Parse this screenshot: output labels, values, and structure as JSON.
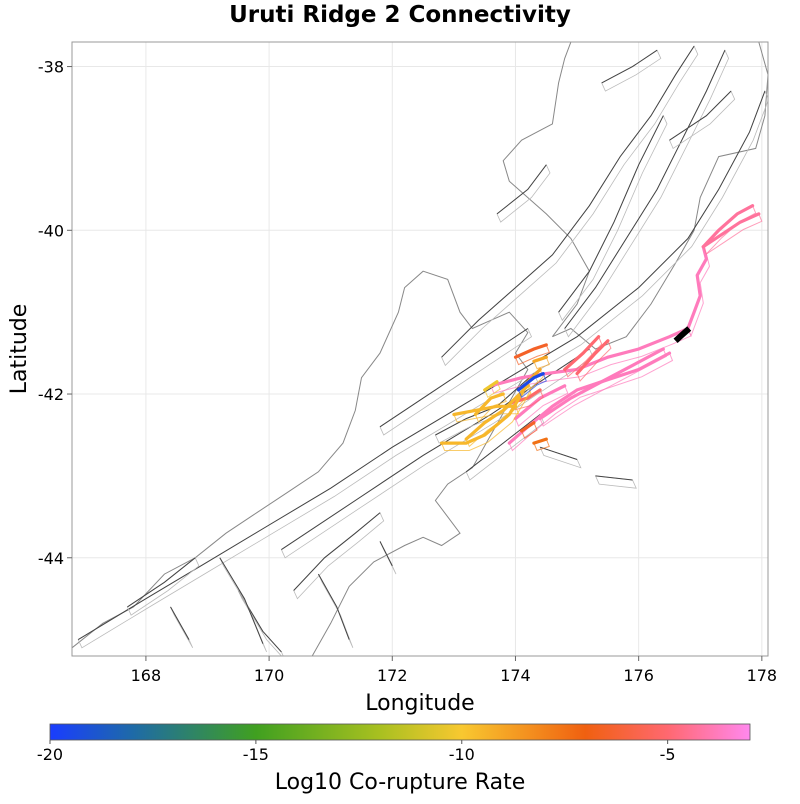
{
  "title": "Uruti Ridge 2 Connectivity",
  "map": {
    "xlabel": "Longitude",
    "ylabel": "Latitude",
    "xlim": [
      166.8,
      178.1
    ],
    "ylim": [
      -45.2,
      -37.7
    ],
    "xticks": [
      168,
      170,
      172,
      174,
      176,
      178
    ],
    "yticks": [
      -38,
      -40,
      -42,
      -44
    ],
    "frame_color": "#999999",
    "grid_color": "#e8e8e8",
    "coast_color": "#888888",
    "fault_color": "#444444",
    "dip_outline_color": "#bbbbbb",
    "coastline": [
      [
        [
          166.8,
          -45.1
        ],
        [
          167.3,
          -44.8
        ],
        [
          167.8,
          -44.6
        ],
        [
          168.3,
          -44.2
        ],
        [
          168.8,
          -44.0
        ],
        [
          169.3,
          -43.7
        ],
        [
          169.8,
          -43.45
        ],
        [
          170.3,
          -43.2
        ],
        [
          170.8,
          -42.95
        ],
        [
          171.2,
          -42.6
        ],
        [
          171.4,
          -42.2
        ],
        [
          171.5,
          -41.8
        ],
        [
          171.8,
          -41.5
        ],
        [
          172.1,
          -41.0
        ],
        [
          172.2,
          -40.7
        ],
        [
          172.5,
          -40.5
        ],
        [
          172.9,
          -40.6
        ],
        [
          173.1,
          -41.0
        ],
        [
          173.3,
          -41.2
        ],
        [
          173.6,
          -41.1
        ],
        [
          173.9,
          -41.0
        ],
        [
          174.2,
          -41.25
        ],
        [
          174.0,
          -41.5
        ],
        [
          174.2,
          -41.7
        ],
        [
          173.9,
          -42.1
        ],
        [
          173.6,
          -42.5
        ],
        [
          173.3,
          -42.9
        ],
        [
          172.9,
          -43.1
        ],
        [
          172.7,
          -43.3
        ],
        [
          172.9,
          -43.5
        ],
        [
          173.1,
          -43.7
        ],
        [
          172.8,
          -43.85
        ],
        [
          172.5,
          -43.75
        ],
        [
          172.2,
          -43.85
        ],
        [
          171.7,
          -44.05
        ],
        [
          171.3,
          -44.35
        ],
        [
          171.0,
          -44.8
        ],
        [
          170.7,
          -45.2
        ]
      ],
      [
        [
          174.6,
          -41.3
        ],
        [
          174.9,
          -41.2
        ],
        [
          175.3,
          -41.45
        ],
        [
          175.8,
          -41.3
        ],
        [
          176.2,
          -40.9
        ],
        [
          176.6,
          -40.4
        ],
        [
          176.9,
          -40.0
        ],
        [
          177.0,
          -39.6
        ],
        [
          177.3,
          -39.1
        ],
        [
          177.9,
          -39.0
        ],
        [
          178.05,
          -38.6
        ],
        [
          178.1,
          -38.1
        ],
        [
          177.95,
          -37.7
        ]
      ],
      [
        [
          174.6,
          -41.3
        ],
        [
          175.0,
          -40.9
        ],
        [
          175.2,
          -40.5
        ],
        [
          174.9,
          -40.1
        ],
        [
          174.5,
          -39.8
        ],
        [
          173.9,
          -39.4
        ],
        [
          173.8,
          -39.15
        ],
        [
          174.1,
          -38.9
        ],
        [
          174.6,
          -38.7
        ],
        [
          174.7,
          -38.2
        ],
        [
          174.8,
          -37.9
        ],
        [
          174.9,
          -37.7
        ]
      ]
    ],
    "background_faults": [
      [
        [
          166.9,
          -45.0
        ],
        [
          168.0,
          -44.5
        ],
        [
          169.0,
          -44.05
        ],
        [
          170.0,
          -43.6
        ],
        [
          171.0,
          -43.15
        ],
        [
          172.0,
          -42.65
        ],
        [
          173.0,
          -42.2
        ],
        [
          174.0,
          -41.75
        ],
        [
          175.0,
          -41.3
        ],
        [
          176.0,
          -40.7
        ],
        [
          176.8,
          -40.1
        ],
        [
          177.3,
          -39.5
        ],
        [
          177.8,
          -38.8
        ],
        [
          178.05,
          -38.3
        ]
      ],
      [
        [
          170.2,
          -43.9
        ],
        [
          171.4,
          -43.3
        ],
        [
          172.5,
          -42.75
        ],
        [
          173.6,
          -42.25
        ],
        [
          174.4,
          -41.85
        ],
        [
          175.2,
          -41.45
        ]
      ],
      [
        [
          171.8,
          -42.4
        ],
        [
          172.7,
          -41.95
        ],
        [
          173.6,
          -41.5
        ],
        [
          174.2,
          -41.2
        ]
      ],
      [
        [
          172.8,
          -41.55
        ],
        [
          173.4,
          -41.1
        ],
        [
          174.0,
          -40.7
        ],
        [
          174.6,
          -40.3
        ],
        [
          175.2,
          -39.7
        ],
        [
          175.7,
          -39.1
        ],
        [
          176.2,
          -38.6
        ],
        [
          176.6,
          -38.1
        ],
        [
          176.9,
          -37.75
        ]
      ],
      [
        [
          174.8,
          -41.2
        ],
        [
          175.3,
          -40.7
        ],
        [
          175.8,
          -40.1
        ],
        [
          176.3,
          -39.5
        ],
        [
          176.7,
          -38.9
        ],
        [
          177.1,
          -38.3
        ],
        [
          177.4,
          -37.8
        ]
      ],
      [
        [
          172.7,
          -42.5
        ],
        [
          173.2,
          -42.3
        ],
        [
          173.7,
          -42.15
        ],
        [
          174.3,
          -41.75
        ]
      ],
      [
        [
          173.2,
          -42.95
        ],
        [
          173.8,
          -42.6
        ],
        [
          174.4,
          -42.25
        ]
      ],
      [
        [
          170.4,
          -44.4
        ],
        [
          170.9,
          -44.0
        ],
        [
          171.4,
          -43.7
        ],
        [
          171.8,
          -43.45
        ]
      ],
      [
        [
          167.7,
          -44.6
        ],
        [
          168.3,
          -44.3
        ],
        [
          168.8,
          -44.0
        ]
      ],
      [
        [
          169.5,
          -44.4
        ],
        [
          169.9,
          -44.9
        ],
        [
          170.2,
          -45.15
        ]
      ],
      [
        [
          169.2,
          -44.0
        ],
        [
          169.6,
          -44.5
        ],
        [
          169.9,
          -45.05
        ]
      ],
      [
        [
          168.4,
          -44.6
        ],
        [
          168.7,
          -45.0
        ]
      ],
      [
        [
          170.8,
          -44.2
        ],
        [
          171.1,
          -44.6
        ],
        [
          171.3,
          -45.0
        ]
      ],
      [
        [
          171.8,
          -43.8
        ],
        [
          172.0,
          -44.1
        ]
      ],
      [
        [
          174.7,
          -41.0
        ],
        [
          175.2,
          -40.5
        ],
        [
          175.6,
          -39.9
        ],
        [
          176.0,
          -39.2
        ],
        [
          176.4,
          -38.6
        ]
      ],
      [
        [
          173.7,
          -39.8
        ],
        [
          174.2,
          -39.5
        ],
        [
          174.5,
          -39.2
        ]
      ],
      [
        [
          175.4,
          -38.2
        ],
        [
          175.9,
          -38.0
        ],
        [
          176.3,
          -37.8
        ]
      ],
      [
        [
          176.5,
          -38.9
        ],
        [
          177.1,
          -38.6
        ],
        [
          177.5,
          -38.3
        ]
      ],
      [
        [
          174.4,
          -42.65
        ],
        [
          175.0,
          -42.8
        ]
      ],
      [
        [
          175.3,
          -43.0
        ],
        [
          175.9,
          -43.05
        ]
      ]
    ],
    "colorbar": {
      "label": "Log10 Co-rupture Rate",
      "min": -20,
      "max": -3,
      "ticks": [
        -20,
        -15,
        -10,
        -5
      ],
      "stops": [
        {
          "value": -20,
          "color": "#1a3dff"
        },
        {
          "value": -18,
          "color": "#1e6aa8"
        },
        {
          "value": -15,
          "color": "#40a020"
        },
        {
          "value": -12,
          "color": "#a8c020"
        },
        {
          "value": -10,
          "color": "#f8c830"
        },
        {
          "value": -7,
          "color": "#f06010"
        },
        {
          "value": -5,
          "color": "#ff6870"
        },
        {
          "value": -3,
          "color": "#ff88ee"
        }
      ]
    },
    "corupture_segments": [
      {
        "rate": -3.8,
        "points": [
          [
            173.6,
            -41.9
          ],
          [
            174.1,
            -41.8
          ],
          [
            174.5,
            -41.75
          ],
          [
            175.0,
            -41.7
          ],
          [
            175.5,
            -41.55
          ],
          [
            176.0,
            -41.45
          ],
          [
            176.5,
            -41.3
          ],
          [
            176.8,
            -41.2
          ]
        ]
      },
      {
        "rate": -3.8,
        "points": [
          [
            174.4,
            -42.3
          ],
          [
            174.9,
            -42.05
          ],
          [
            175.4,
            -41.85
          ],
          [
            175.9,
            -41.65
          ],
          [
            176.4,
            -41.45
          ]
        ]
      },
      {
        "rate": -3.8,
        "points": [
          [
            173.9,
            -42.6
          ],
          [
            174.2,
            -42.4
          ],
          [
            174.6,
            -42.15
          ],
          [
            175.0,
            -41.95
          ],
          [
            175.4,
            -41.85
          ],
          [
            176.0,
            -41.7
          ],
          [
            176.5,
            -41.5
          ]
        ]
      },
      {
        "rate": -3.8,
        "points": [
          [
            174.0,
            -42.3
          ],
          [
            174.4,
            -42.05
          ],
          [
            174.8,
            -41.9
          ]
        ]
      },
      {
        "rate": -3.8,
        "points": [
          [
            176.8,
            -41.2
          ],
          [
            176.9,
            -41.0
          ],
          [
            177.0,
            -40.8
          ],
          [
            176.95,
            -40.55
          ],
          [
            177.1,
            -40.35
          ],
          [
            177.05,
            -40.2
          ]
        ]
      },
      {
        "rate": -4.3,
        "points": [
          [
            177.05,
            -40.2
          ],
          [
            177.3,
            -40.0
          ],
          [
            177.6,
            -39.8
          ],
          [
            177.85,
            -39.7
          ]
        ]
      },
      {
        "rate": -4.3,
        "points": [
          [
            177.05,
            -40.2
          ],
          [
            177.35,
            -40.05
          ],
          [
            177.65,
            -39.9
          ],
          [
            177.95,
            -39.8
          ]
        ]
      },
      {
        "rate": -5.0,
        "points": [
          [
            175.0,
            -41.75
          ],
          [
            175.3,
            -41.5
          ],
          [
            175.5,
            -41.35
          ]
        ]
      },
      {
        "rate": -5.0,
        "points": [
          [
            174.8,
            -41.7
          ],
          [
            175.1,
            -41.5
          ],
          [
            175.35,
            -41.3
          ]
        ]
      },
      {
        "rate": -5.2,
        "points": [
          [
            173.95,
            -42.1
          ],
          [
            174.2,
            -42.05
          ],
          [
            174.4,
            -41.95
          ]
        ]
      },
      {
        "rate": -6.5,
        "points": [
          [
            174.0,
            -41.55
          ],
          [
            174.3,
            -41.45
          ],
          [
            174.5,
            -41.4
          ]
        ]
      },
      {
        "rate": -6.5,
        "points": [
          [
            174.1,
            -42.45
          ],
          [
            174.3,
            -42.35
          ]
        ]
      },
      {
        "rate": -7.5,
        "points": [
          [
            174.3,
            -42.6
          ],
          [
            174.5,
            -42.55
          ]
        ]
      },
      {
        "rate": -9.5,
        "points": [
          [
            172.8,
            -42.6
          ],
          [
            173.2,
            -42.6
          ],
          [
            173.5,
            -42.5
          ],
          [
            173.9,
            -42.25
          ],
          [
            174.1,
            -42.0
          ],
          [
            174.2,
            -41.85
          ]
        ]
      },
      {
        "rate": -9.5,
        "points": [
          [
            173.2,
            -42.55
          ],
          [
            173.5,
            -42.35
          ],
          [
            173.8,
            -42.2
          ],
          [
            174.0,
            -42.05
          ],
          [
            174.2,
            -41.9
          ]
        ]
      },
      {
        "rate": -9.5,
        "points": [
          [
            173.0,
            -42.25
          ],
          [
            173.35,
            -42.2
          ],
          [
            173.7,
            -42.15
          ],
          [
            174.0,
            -42.15
          ]
        ]
      },
      {
        "rate": -9.5,
        "points": [
          [
            173.35,
            -42.25
          ],
          [
            173.6,
            -42.05
          ],
          [
            173.8,
            -42.0
          ]
        ]
      },
      {
        "rate": -10.2,
        "points": [
          [
            173.5,
            -41.95
          ],
          [
            173.7,
            -41.85
          ]
        ]
      },
      {
        "rate": -9.0,
        "points": [
          [
            174.3,
            -41.6
          ],
          [
            174.5,
            -41.55
          ]
        ]
      },
      {
        "rate": -9.0,
        "points": [
          [
            174.2,
            -41.85
          ],
          [
            174.4,
            -41.7
          ]
        ]
      },
      {
        "rate": -19.5,
        "points": [
          [
            174.05,
            -41.95
          ],
          [
            174.3,
            -41.8
          ],
          [
            174.45,
            -41.75
          ]
        ]
      }
    ],
    "source_rupture": {
      "color": "#000000",
      "points": [
        [
          176.6,
          -41.35
        ],
        [
          176.7,
          -41.28
        ],
        [
          176.82,
          -41.2
        ]
      ]
    }
  }
}
